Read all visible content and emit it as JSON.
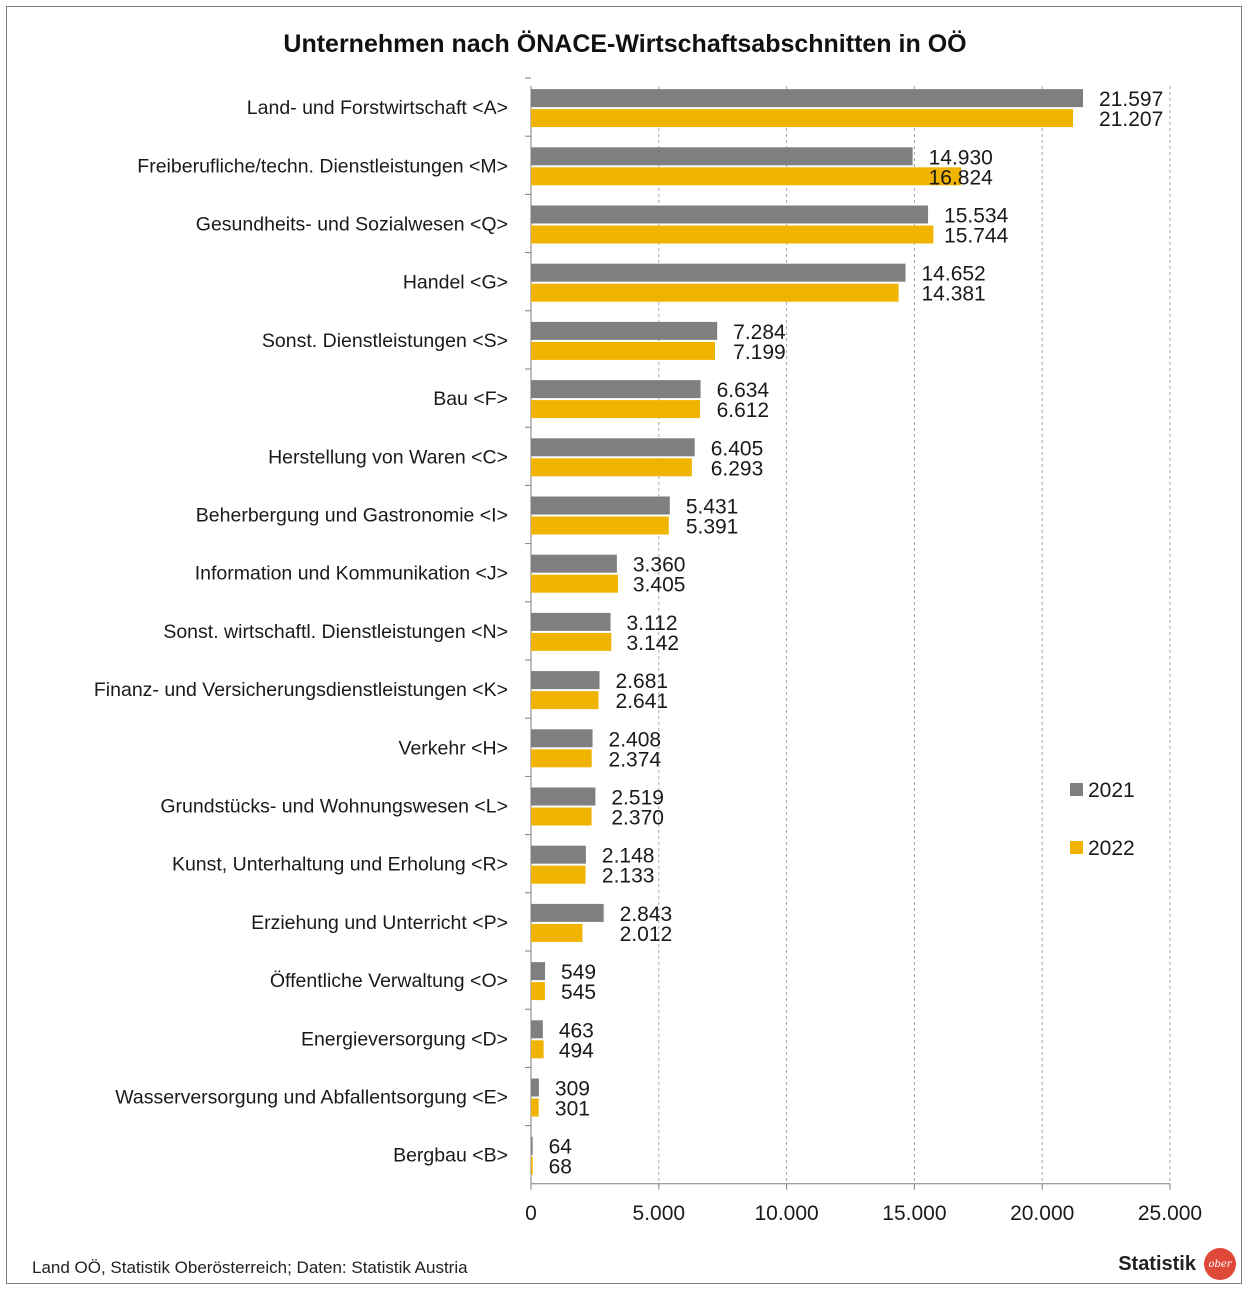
{
  "colors": {
    "series_2021": "#7f7f7f",
    "series_2022": "#f0b400",
    "grid": "#a6a6a6",
    "axis": "#7f7f7f",
    "logo": "#e0493a"
  },
  "source": "Land OÖ, Statistik Oberösterreich; Daten: Statistik Austria",
  "brand": {
    "text": "Statistik",
    "logo_text": "ober",
    "logo_icon": "statistik-ober-logo-icon"
  },
  "chart_data": {
    "type": "bar",
    "orientation": "horizontal",
    "title": "Unternehmen nach ÖNACE-Wirtschaftsabschnitten in OÖ",
    "xlabel": "",
    "ylabel": "",
    "xlim": [
      0,
      25000
    ],
    "xticks": [
      0,
      5000,
      10000,
      15000,
      20000,
      25000
    ],
    "xtick_labels": [
      "0",
      "5.000",
      "10.000",
      "15.000",
      "20.000",
      "25.000"
    ],
    "grid": "vertical dashed",
    "legend_position": "right",
    "categories": [
      "Land- und Forstwirtschaft <A>",
      "Freiberufliche/techn. Dienstleistungen <M>",
      "Gesundheits- und Sozialwesen <Q>",
      "Handel <G>",
      "Sonst. Dienstleistungen <S>",
      "Bau <F>",
      "Herstellung von Waren <C>",
      "Beherbergung und Gastronomie <I>",
      "Information und Kommunikation <J>",
      "Sonst. wirtschaftl. Dienstleistungen <N>",
      "Finanz- und Versicherungsdienstleistungen <K>",
      "Verkehr <H>",
      "Grundstücks- und Wohnungswesen <L>",
      "Kunst, Unterhaltung und Erholung <R>",
      "Erziehung und Unterricht <P>",
      "Öffentliche Verwaltung <O>",
      "Energieversorgung <D>",
      "Wasserversorgung und Abfallentsorgung <E>",
      "Bergbau <B>"
    ],
    "series": [
      {
        "name": "2021",
        "values": [
          21597,
          14930,
          15534,
          14652,
          7284,
          6634,
          6405,
          5431,
          3360,
          3112,
          2681,
          2408,
          2519,
          2148,
          2843,
          549,
          463,
          309,
          64
        ],
        "labels": [
          "21.597",
          "14.930",
          "15.534",
          "14.652",
          "7.284",
          "6.634",
          "6.405",
          "5.431",
          "3.360",
          "3.112",
          "2.681",
          "2.408",
          "2.519",
          "2.148",
          "2.843",
          "549",
          "463",
          "309",
          "64"
        ]
      },
      {
        "name": "2022",
        "values": [
          21207,
          16824,
          15744,
          14381,
          7199,
          6612,
          6293,
          5391,
          3405,
          3142,
          2641,
          2374,
          2370,
          2133,
          2012,
          545,
          494,
          301,
          68
        ],
        "labels": [
          "21.207",
          "16.824",
          "15.744",
          "14.381",
          "7.199",
          "6.612",
          "6.293",
          "5.391",
          "3.405",
          "3.142",
          "2.641",
          "2.374",
          "2.370",
          "2.133",
          "2.012",
          "545",
          "494",
          "301",
          "68"
        ]
      }
    ]
  }
}
